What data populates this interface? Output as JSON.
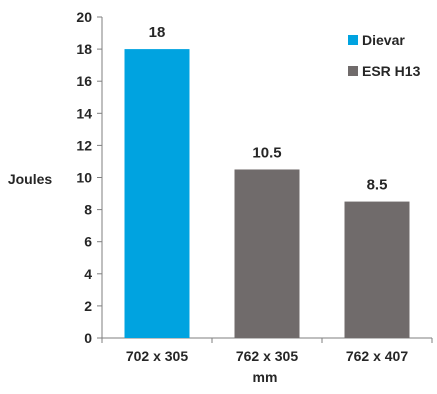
{
  "chart_data": {
    "type": "bar",
    "categories": [
      "702 x 305",
      "762 x 305",
      "762 x 407"
    ],
    "series": [
      {
        "name": "Dievar",
        "color": "#00A3E0",
        "values": [
          18,
          null,
          null
        ]
      },
      {
        "name": "ESR H13",
        "color": "#706B6B",
        "values": [
          null,
          10.5,
          8.5
        ]
      }
    ],
    "data_labels": [
      "18",
      "10.5",
      "8.5"
    ],
    "xlabel": "mm",
    "ylabel": "Joules",
    "ylim": [
      0,
      20
    ],
    "yticks": [
      0,
      2,
      4,
      6,
      8,
      10,
      12,
      14,
      16,
      18,
      20
    ],
    "grid": false,
    "legend_position": "top-right"
  }
}
